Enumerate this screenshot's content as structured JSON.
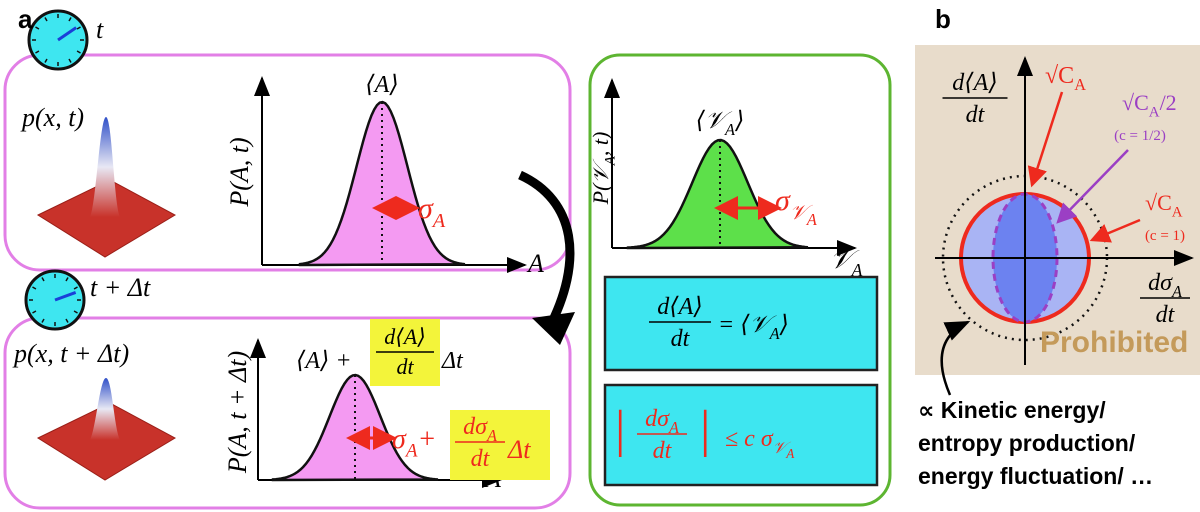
{
  "panel_a": {
    "label": "a",
    "top": {
      "clock_label": "t",
      "density": "p(x, t)",
      "mean": "⟨A⟩",
      "y_label": "P(A, t)",
      "sigma": "σ",
      "sigma_sub": "A",
      "x_label": "A"
    },
    "bottom": {
      "clock_label": "t + Δt",
      "density": "p(x, t + Δt)",
      "mean": "⟨A⟩ +",
      "mean_rate_num": "d⟨A⟩",
      "mean_rate_den": "dt",
      "mean_dt": "Δt",
      "y_label": "P(A, t + Δt)",
      "sigma": "σ",
      "sigma_sub": "A",
      "plus": "+",
      "sigma_rate_num": "dσ",
      "sigma_rate_num_sub": "A",
      "sigma_rate_den": "dt",
      "sigma_dt": "Δt",
      "x_label": "A"
    },
    "velocity": {
      "mean": "⟨𝒱",
      "mean_sub": "A",
      "mean_close": "⟩",
      "y_label": "P(𝒱",
      "y_label_sub": "A",
      "y_label_end": ", t)",
      "sigma": "σ",
      "sigma_sub": "𝒱",
      "sigma_sub2": "A",
      "x_label": "𝒱",
      "x_label_sub": "A"
    },
    "relation_1": {
      "num": "d⟨A⟩",
      "den": "dt",
      "rhs": "= ⟨𝒱",
      "rhs_sub": "A",
      "rhs_close": "⟩"
    },
    "relation_2": {
      "bar_open": "|",
      "num": "dσ",
      "num_sub": "A",
      "den": "dt",
      "bar_close": "|",
      "rhs": "≤ c σ",
      "rhs_sub": "𝒱",
      "rhs_sub2": "A"
    }
  },
  "panel_b": {
    "label": "b",
    "y_axis_num": "d⟨A⟩",
    "y_axis_den": "dt",
    "x_axis_num": "dσ",
    "x_axis_num_sub": "A",
    "x_axis_den": "dt",
    "bound_1": "√C",
    "bound_1_sub": "A",
    "bound_half": "√C",
    "bound_half_sub": "A",
    "bound_half_suffix": "/2",
    "half_condition": "(c = 1/2)",
    "bound_full": "√C",
    "bound_full_sub": "A",
    "full_condition": "(c = 1)",
    "prohibited": "Prohibited",
    "footnote": [
      "∝ Kinetic energy/",
      "entropy production/",
      "energy fluctuation/ …"
    ]
  }
}
